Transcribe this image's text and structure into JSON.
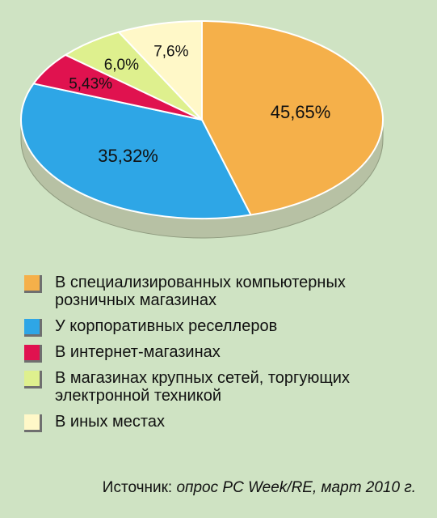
{
  "chart_data": {
    "type": "pie",
    "categories": [
      "В специализированных компьютерных розничных магазинах",
      "У корпоративных реселлеров",
      "В интернет-магазинах",
      "В магазинах крупных сетей, торгующих электронной техникой",
      "В иных местах"
    ],
    "values": [
      45.65,
      35.32,
      5.43,
      6.0,
      7.6
    ],
    "value_labels": [
      "45,65%",
      "35,32%",
      "5,43%",
      "6,0%",
      "7,6%"
    ],
    "colors": [
      "#f5b04a",
      "#2ea6e6",
      "#e0124f",
      "#def08e",
      "#fff8c8"
    ],
    "legend_position": "bottom"
  },
  "legend": {
    "items": [
      {
        "line1": "В специализированных компьютерных",
        "line2": "розничных магазинах"
      },
      {
        "line1": "У корпоративных реселлеров",
        "line2": ""
      },
      {
        "line1": "В интернет-магазинах",
        "line2": ""
      },
      {
        "line1": "В магазинах крупных сетей, торгующих",
        "line2": "электронной техникой"
      },
      {
        "line1": "В иных местах",
        "line2": ""
      }
    ]
  },
  "source": {
    "prefix": "Источник: ",
    "text": "опрос PC Week/RE, март 2010 г."
  }
}
